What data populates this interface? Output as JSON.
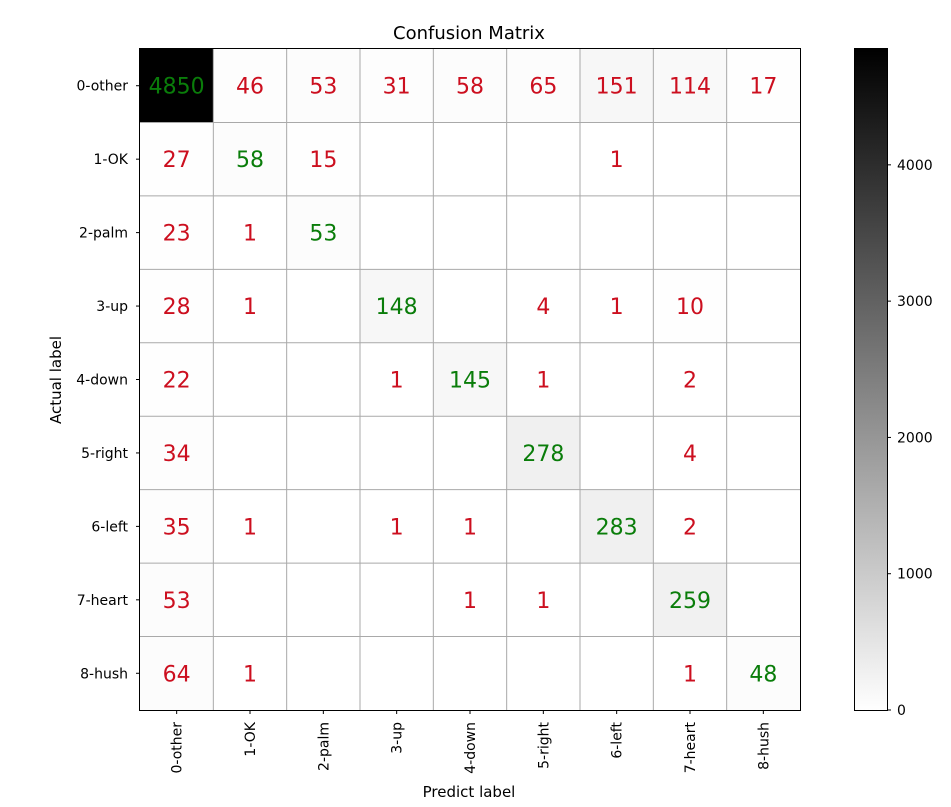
{
  "chart_data": {
    "type": "heatmap",
    "title": "Confusion Matrix",
    "xlabel": "Predict label",
    "ylabel": "Actual label",
    "row_labels": [
      "0-other",
      "1-OK",
      "2-palm",
      "3-up",
      "4-down",
      "5-right",
      "6-left",
      "7-heart",
      "8-hush"
    ],
    "col_labels": [
      "0-other",
      "1-OK",
      "2-palm",
      "3-up",
      "4-down",
      "5-right",
      "6-left",
      "7-heart",
      "8-hush"
    ],
    "matrix": [
      [
        4850,
        46,
        53,
        31,
        58,
        65,
        151,
        114,
        17
      ],
      [
        27,
        58,
        15,
        0,
        0,
        0,
        1,
        0,
        0
      ],
      [
        23,
        1,
        53,
        0,
        0,
        0,
        0,
        0,
        0
      ],
      [
        28,
        1,
        0,
        148,
        0,
        4,
        1,
        10,
        0
      ],
      [
        22,
        0,
        0,
        1,
        145,
        1,
        0,
        2,
        0
      ],
      [
        34,
        0,
        0,
        0,
        0,
        278,
        0,
        4,
        0
      ],
      [
        35,
        1,
        0,
        1,
        1,
        0,
        283,
        2,
        0
      ],
      [
        53,
        0,
        0,
        0,
        1,
        1,
        0,
        259,
        0
      ],
      [
        64,
        1,
        0,
        0,
        0,
        0,
        0,
        1,
        48
      ]
    ],
    "zero_cells_shown": false,
    "colormap": "Greys",
    "color_range": [
      0,
      4850
    ],
    "colorbar_ticks": [
      "0",
      "1000",
      "2000",
      "3000",
      "4000"
    ],
    "colorbar_tick_values": [
      0,
      1000,
      2000,
      3000,
      4000
    ],
    "grid": true,
    "colors": {
      "diagonal_text": "#0a7d0a",
      "off_diagonal_text": "#cc0f1f",
      "grid_line": "#a9a9a9"
    }
  }
}
